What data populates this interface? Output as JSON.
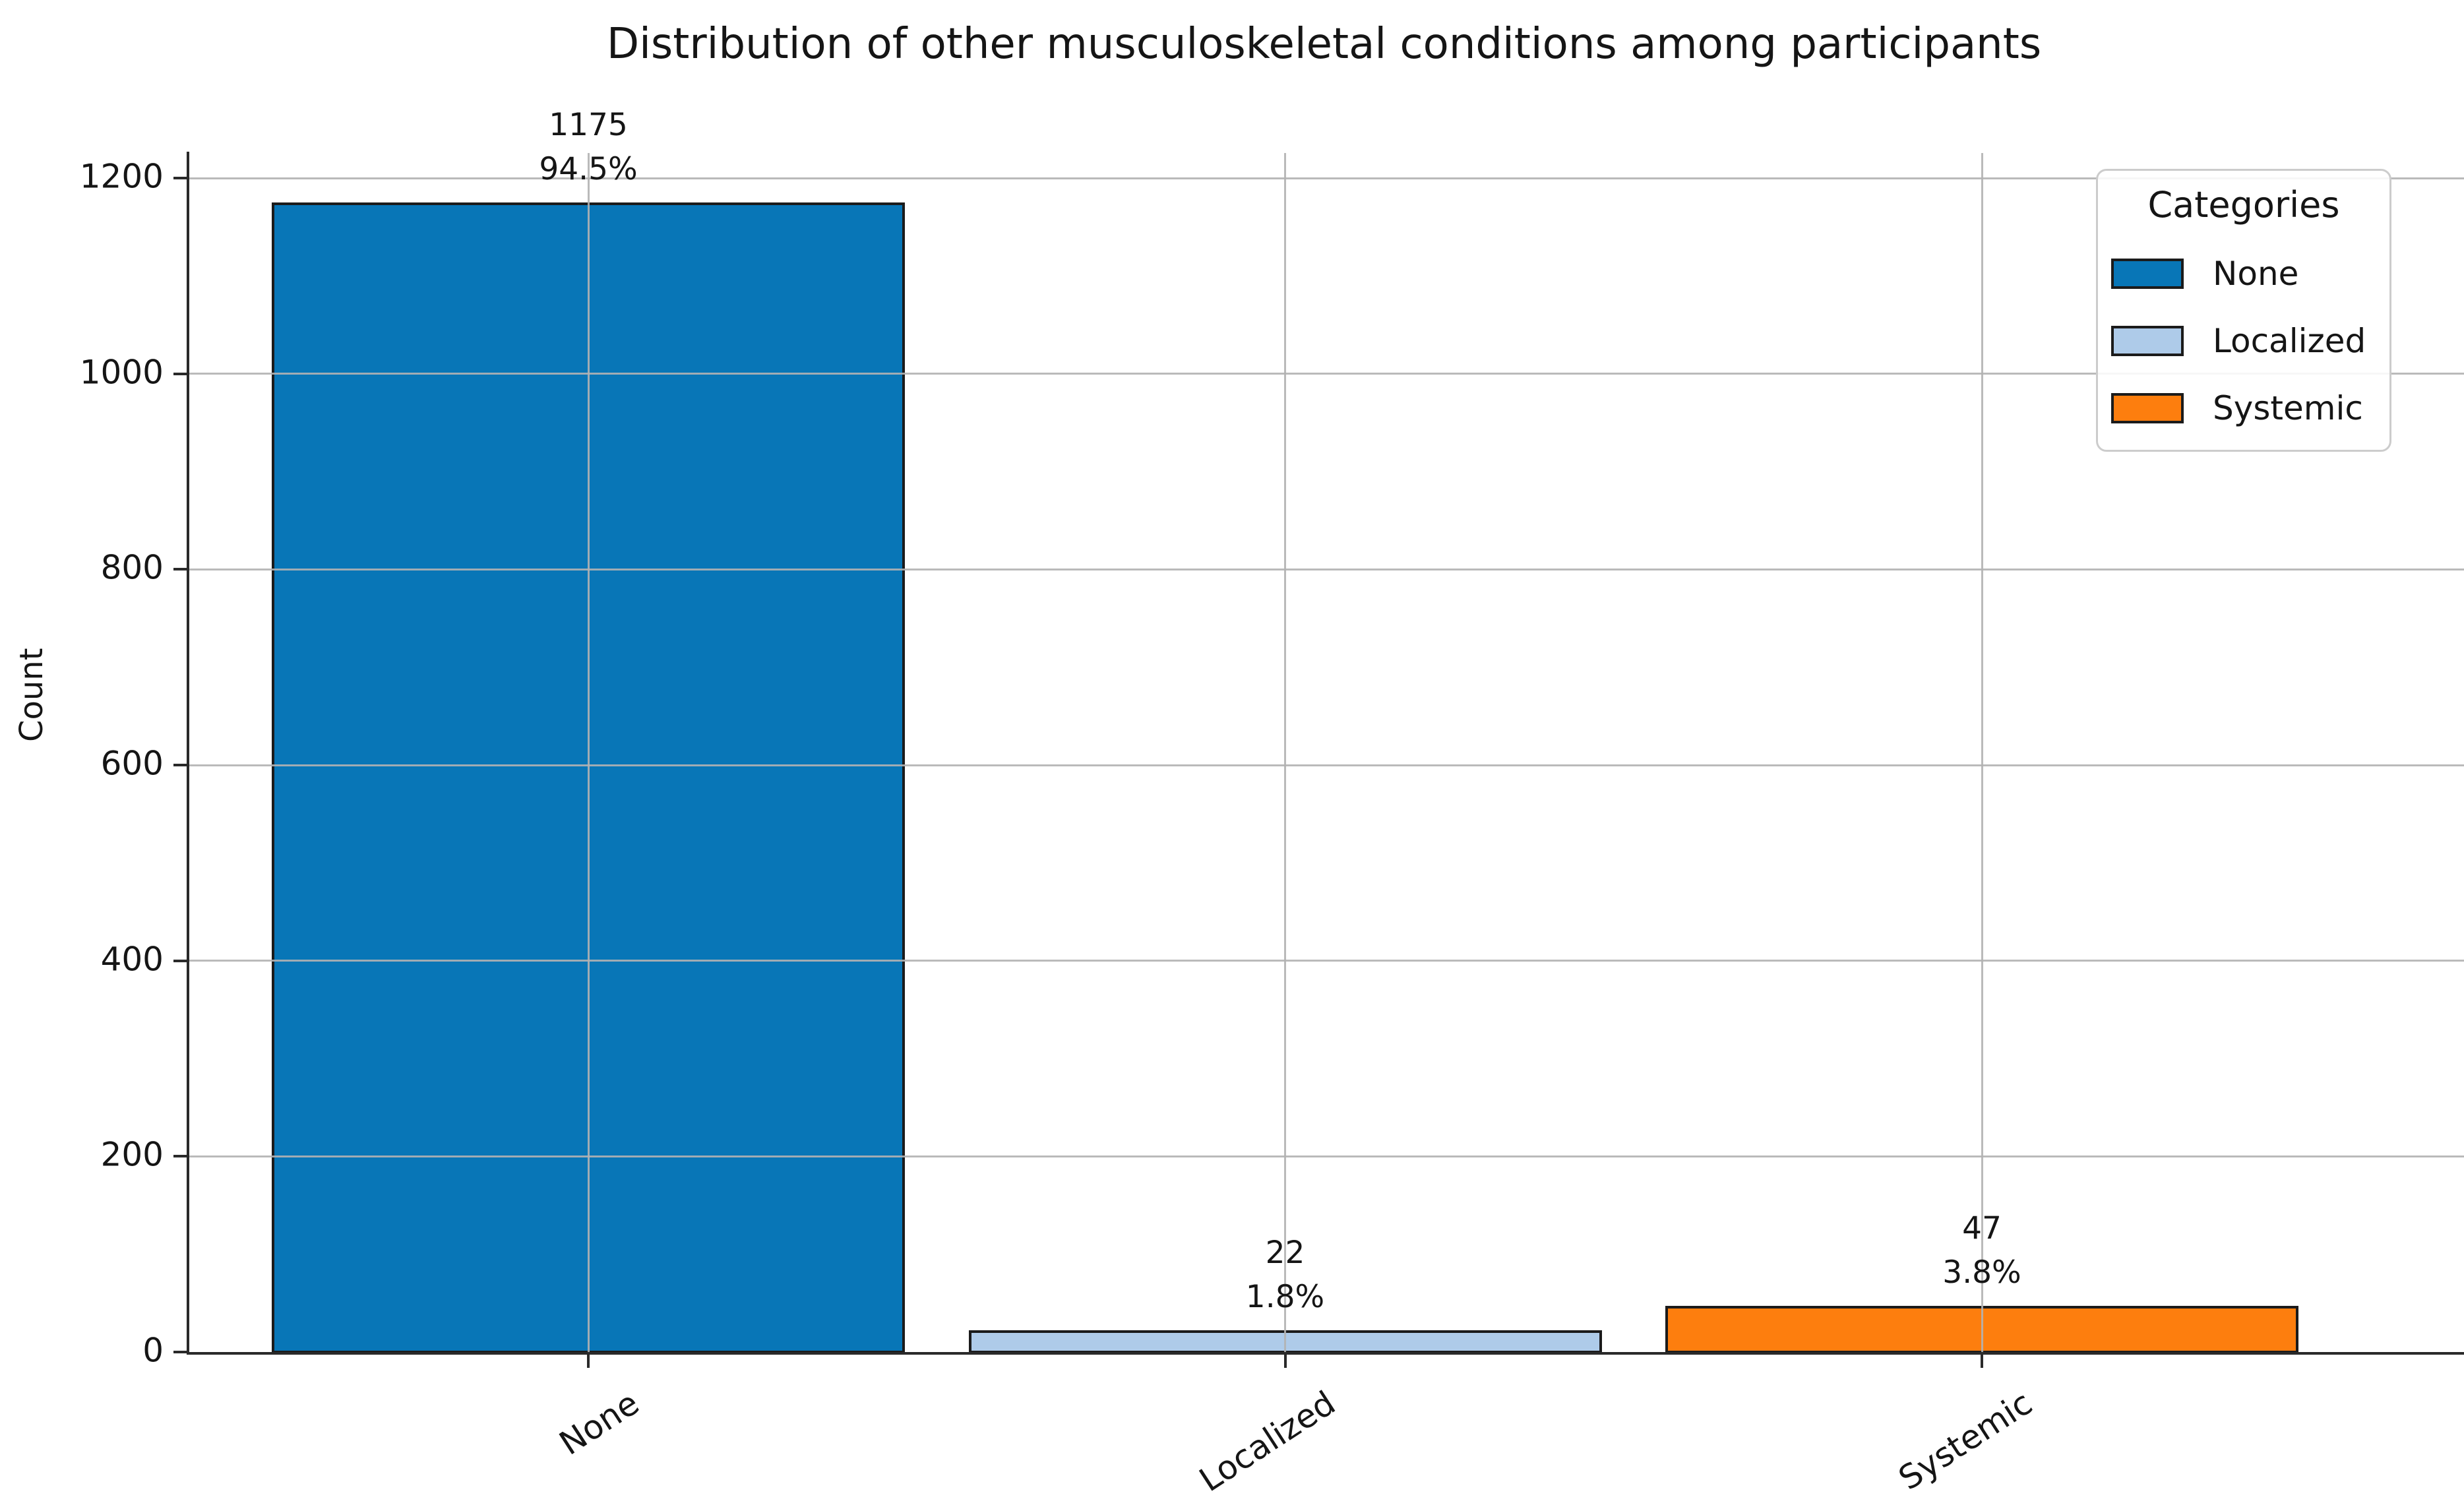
{
  "chart_data": {
    "type": "bar",
    "title": "Distribution of other musculoskeletal conditions among participants",
    "xlabel": "",
    "ylabel": "Count",
    "categories": [
      "None",
      "Localized",
      "Systemic"
    ],
    "values": [
      1175,
      22,
      47
    ],
    "bar_annotations": [
      {
        "count": "1175",
        "percent": "94.5%"
      },
      {
        "count": "22",
        "percent": "1.8%"
      },
      {
        "count": "47",
        "percent": "3.8%"
      }
    ],
    "bar_colors": [
      "#0876b7",
      "#aecbe9",
      "#fd7e0e"
    ],
    "bar_edge_color": "#1b1b1b",
    "y_ticks": [
      0,
      200,
      400,
      600,
      800,
      1000,
      1200
    ],
    "ylim": [
      0,
      1227
    ],
    "grid": true,
    "grid_color": "#b2b2b2",
    "legend": {
      "title": "Categories",
      "position": "upper right",
      "entries": [
        {
          "label": "None",
          "color": "#0876b7"
        },
        {
          "label": "Localized",
          "color": "#aecbe9"
        },
        {
          "label": "Systemic",
          "color": "#fd7e0e"
        }
      ]
    }
  }
}
